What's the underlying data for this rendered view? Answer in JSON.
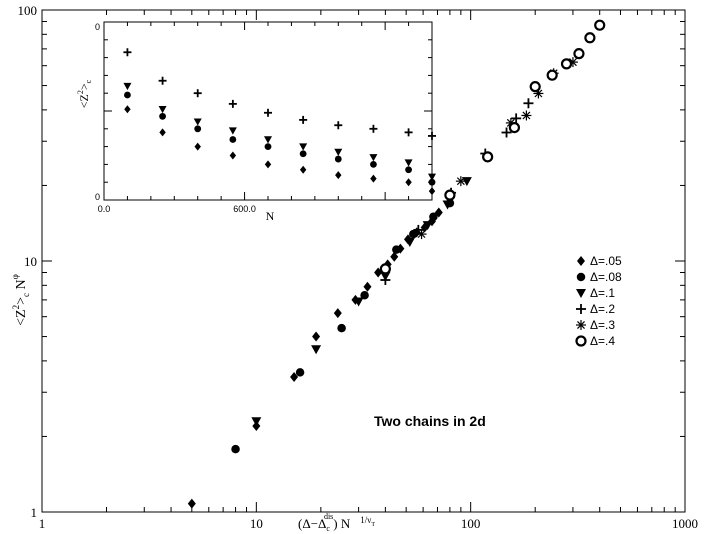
{
  "chart_data": [
    {
      "type": "scatter",
      "scale": {
        "x": "log",
        "y": "log"
      },
      "xlim": [
        1,
        1000
      ],
      "ylim": [
        1,
        100
      ],
      "x_ticks": [
        {
          "value": 1,
          "label": "1"
        },
        {
          "value": 10,
          "label": "10"
        },
        {
          "value": 100,
          "label": "100"
        },
        {
          "value": 1000,
          "label": "1000"
        }
      ],
      "y_ticks": [
        {
          "value": 1,
          "label": "1"
        },
        {
          "value": 10,
          "label": "10"
        },
        {
          "value": 100,
          "label": "100"
        }
      ],
      "xlabel": {
        "main": "(Δ−Δ",
        "sub": "c",
        "sup": "dis",
        "tail": ") N",
        "exp": "1/ν",
        "exp_sub": "T"
      },
      "ylabel": {
        "main": "<Z",
        "sup": "2",
        "mid": ">",
        "sub": "c",
        "tail": " N",
        "tail_sup": "φ"
      },
      "annotation": "Two chains in 2d",
      "grid": false,
      "legend_position": "right",
      "series": [
        {
          "name": "Δ=.05",
          "marker": "diamond",
          "x": [
            5,
            10,
            15,
            19,
            24,
            29,
            33,
            37,
            41,
            44,
            47,
            51,
            56,
            61,
            66,
            71
          ],
          "y": [
            1.08,
            2.2,
            3.45,
            5.0,
            6.2,
            7.0,
            7.9,
            9.0,
            9.7,
            10.4,
            11.2,
            12.2,
            13.0,
            13.6,
            14.4,
            15.6
          ]
        },
        {
          "name": "Δ=.08",
          "marker": "circle",
          "x": [
            8,
            16,
            25,
            32,
            45,
            54,
            67,
            80
          ],
          "y": [
            1.78,
            3.6,
            5.4,
            7.3,
            11.1,
            12.8,
            15.0,
            17.0
          ]
        },
        {
          "name": "Δ=.1",
          "marker": "triangle-down",
          "x": [
            10,
            19,
            30,
            40,
            52,
            63,
            78,
            96
          ],
          "y": [
            2.3,
            4.45,
            6.9,
            8.7,
            11.9,
            13.9,
            16.8,
            20.8
          ]
        },
        {
          "name": "Δ=.2",
          "marker": "plus",
          "x": [
            40,
            57,
            81,
            117,
            147,
            163,
            186
          ],
          "y": [
            8.4,
            13.3,
            18.7,
            26.8,
            32.5,
            37.0,
            42.5
          ]
        },
        {
          "name": "Δ=.3",
          "marker": "star",
          "x": [
            59,
            90,
            154,
            182,
            207,
            244,
            300
          ],
          "y": [
            12.8,
            20.8,
            35.5,
            38.0,
            46.5,
            56.0,
            62.0
          ]
        },
        {
          "name": "Δ=.4",
          "marker": "open-circle",
          "x": [
            40,
            80,
            120,
            160,
            200,
            240,
            280,
            320,
            360,
            400
          ],
          "y": [
            9.3,
            18.3,
            26.0,
            34.0,
            49.5,
            55.0,
            61.0,
            67.0,
            77.5,
            87.0
          ]
        }
      ]
    },
    {
      "type": "scatter",
      "role": "inset",
      "xlim": [
        0,
        1400
      ],
      "ylim": [
        0,
        1
      ],
      "x_ticks": [
        {
          "value": 0,
          "label": "0.0"
        },
        {
          "value": 600,
          "label": "600.0"
        }
      ],
      "y_ticks": [
        {
          "value": 0,
          "label": "0"
        },
        {
          "value": 1,
          "label": "0"
        }
      ],
      "xlabel": "N",
      "ylabel": {
        "main": "<Z",
        "sup": "2",
        "mid": ">",
        "sub": "c"
      },
      "x": [
        100,
        250,
        400,
        550,
        700,
        850,
        1000,
        1150,
        1300,
        1400
      ],
      "series": [
        {
          "name": "Δ=.2",
          "marker": "plus",
          "y": [
            0.83,
            0.67,
            0.6,
            0.54,
            0.49,
            0.45,
            0.42,
            0.4,
            0.38,
            0.36
          ]
        },
        {
          "name": "Δ=.1",
          "marker": "triangle-down",
          "y": [
            0.64,
            0.51,
            0.44,
            0.39,
            0.34,
            0.3,
            0.27,
            0.24,
            0.21,
            0.13
          ]
        },
        {
          "name": "Δ=.08",
          "marker": "circle",
          "y": [
            0.59,
            0.47,
            0.4,
            0.34,
            0.3,
            0.26,
            0.23,
            0.2,
            0.17,
            0.1
          ]
        },
        {
          "name": "Δ=.05",
          "marker": "diamond",
          "y": [
            0.51,
            0.38,
            0.3,
            0.25,
            0.2,
            0.17,
            0.14,
            0.12,
            0.1,
            0.05
          ]
        }
      ]
    }
  ]
}
